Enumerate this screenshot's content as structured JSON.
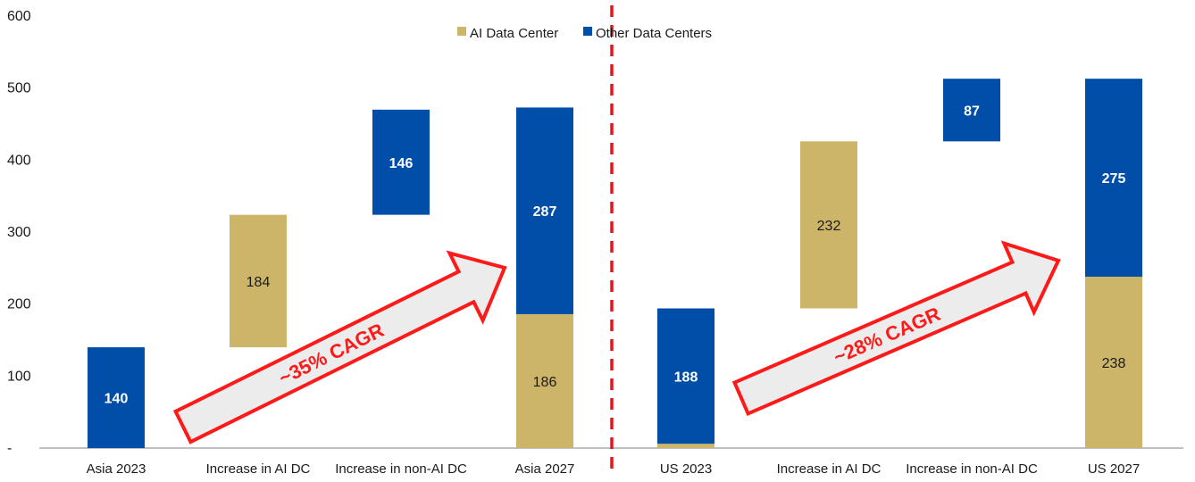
{
  "chart_data": {
    "type": "bar",
    "ylim": [
      0,
      600
    ],
    "y_ticks": [
      {
        "value": 0,
        "label": "-"
      },
      {
        "value": 100,
        "label": "100"
      },
      {
        "value": 200,
        "label": "200"
      },
      {
        "value": 300,
        "label": "300"
      },
      {
        "value": 400,
        "label": "400"
      },
      {
        "value": 500,
        "label": "500"
      },
      {
        "value": 600,
        "label": "600"
      }
    ],
    "grid": false,
    "legend_position": "top",
    "categories": [
      "Asia 2023",
      "Increase in AI DC",
      "Increase in non-AI DC",
      "Asia 2027",
      "US 2023",
      "Increase in AI DC",
      "Increase in non-AI DC",
      "US 2027"
    ],
    "series": [
      {
        "name": "AI Data Center",
        "color": "#ccb468",
        "bars": [
          {
            "category": 1,
            "base": 140,
            "value": 184,
            "label": "184"
          },
          {
            "category": 3,
            "base": 0,
            "value": 186,
            "label": "186"
          },
          {
            "category": 4,
            "base": 0,
            "value": 6,
            "label": ""
          },
          {
            "category": 5,
            "base": 194,
            "value": 232,
            "label": "232"
          },
          {
            "category": 7,
            "base": 0,
            "value": 238,
            "label": "238"
          }
        ]
      },
      {
        "name": "Other Data Centers",
        "color": "#004ea8",
        "bars": [
          {
            "category": 0,
            "base": 0,
            "value": 140,
            "label": "140"
          },
          {
            "category": 2,
            "base": 324,
            "value": 146,
            "label": "146"
          },
          {
            "category": 3,
            "base": 186,
            "value": 287,
            "label": "287"
          },
          {
            "category": 4,
            "base": 6,
            "value": 188,
            "label": "188"
          },
          {
            "category": 6,
            "base": 426,
            "value": 87,
            "label": "87"
          },
          {
            "category": 7,
            "base": 238,
            "value": 275,
            "label": "275"
          }
        ]
      }
    ],
    "annotations": [
      {
        "text": "~35% CAGR",
        "arrow_color": "#ff1a1a"
      },
      {
        "text": "~28% CAGR",
        "arrow_color": "#ff1a1a"
      }
    ],
    "divider": {
      "between_categories": [
        3,
        4
      ],
      "color": "#e8141c",
      "style": "dashed"
    }
  }
}
